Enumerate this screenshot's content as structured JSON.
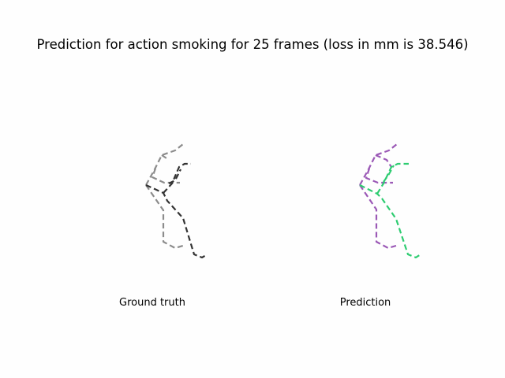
{
  "title": "Prediction for action smoking for 25 frames (loss in mm is 38.546)",
  "panels": [
    {
      "caption": "Ground truth",
      "colors": {
        "left": "#8c8c8c",
        "right": "#333333"
      }
    },
    {
      "caption": "Prediction",
      "colors": {
        "left": "#9b59b6",
        "right": "#2ecc71"
      }
    }
  ]
}
